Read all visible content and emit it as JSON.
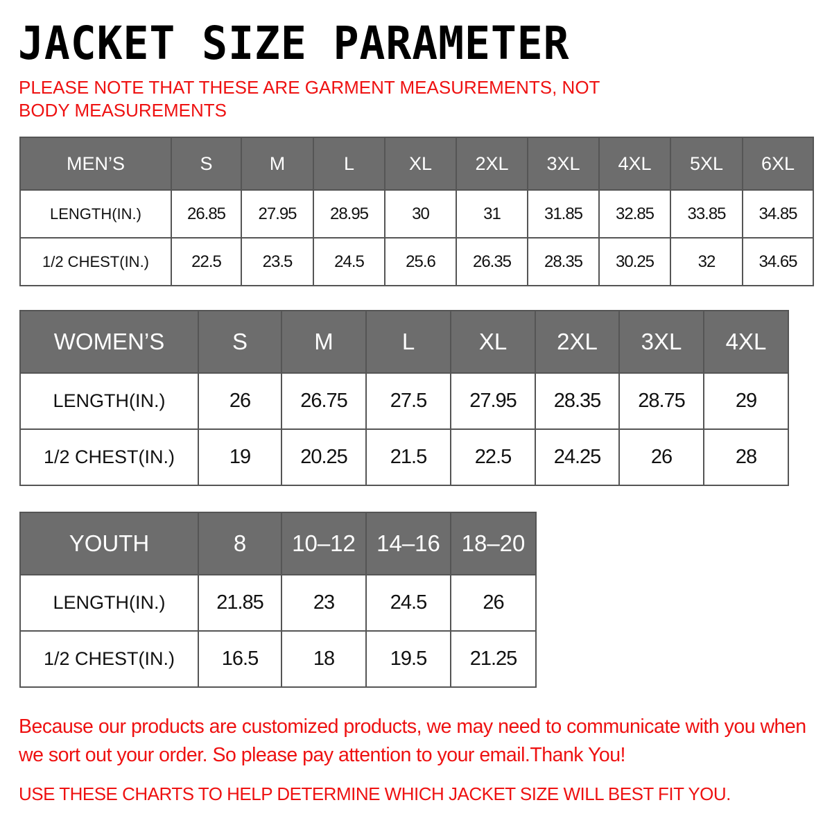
{
  "title": "JACKET SIZE PARAMETER",
  "note": "PLEASE NOTE THAT THESE ARE GARMENT MEASUREMENTS, NOT BODY MEASUREMENTS",
  "colors": {
    "header_bg": "#6d6d6d",
    "accent_red": "#ee1111"
  },
  "tables": {
    "mens": {
      "header": [
        "MEN’S",
        "S",
        "M",
        "L",
        "XL",
        "2XL",
        "3XL",
        "4XL",
        "5XL",
        "6XL"
      ],
      "rows": [
        [
          "LENGTH(IN.)",
          "26.85",
          "27.95",
          "28.95",
          "30",
          "31",
          "31.85",
          "32.85",
          "33.85",
          "34.85"
        ],
        [
          "1/2 CHEST(IN.)",
          "22.5",
          "23.5",
          "24.5",
          "25.6",
          "26.35",
          "28.35",
          "30.25",
          "32",
          "34.65"
        ]
      ]
    },
    "womens": {
      "header": [
        "WOMEN’S",
        "S",
        "M",
        "L",
        "XL",
        "2XL",
        "3XL",
        "4XL"
      ],
      "rows": [
        [
          "LENGTH(IN.)",
          "26",
          "26.75",
          "27.5",
          "27.95",
          "28.35",
          "28.75",
          "29"
        ],
        [
          "1/2 CHEST(IN.)",
          "19",
          "20.25",
          "21.5",
          "22.5",
          "24.25",
          "26",
          "28"
        ]
      ]
    },
    "youth": {
      "header": [
        "YOUTH",
        "8",
        "10–12",
        "14–16",
        "18–20"
      ],
      "rows": [
        [
          "LENGTH(IN.)",
          "21.85",
          "23",
          "24.5",
          "26"
        ],
        [
          "1/2 CHEST(IN.)",
          "16.5",
          "18",
          "19.5",
          "21.25"
        ]
      ]
    }
  },
  "footer": "Because our products are customized products, we may need to communicate with you when we sort out your order. So please pay attention to your email.Thank You!",
  "footer2": "USE THESE CHARTS TO HELP DETERMINE WHICH JACKET SIZE WILL BEST FIT YOU."
}
